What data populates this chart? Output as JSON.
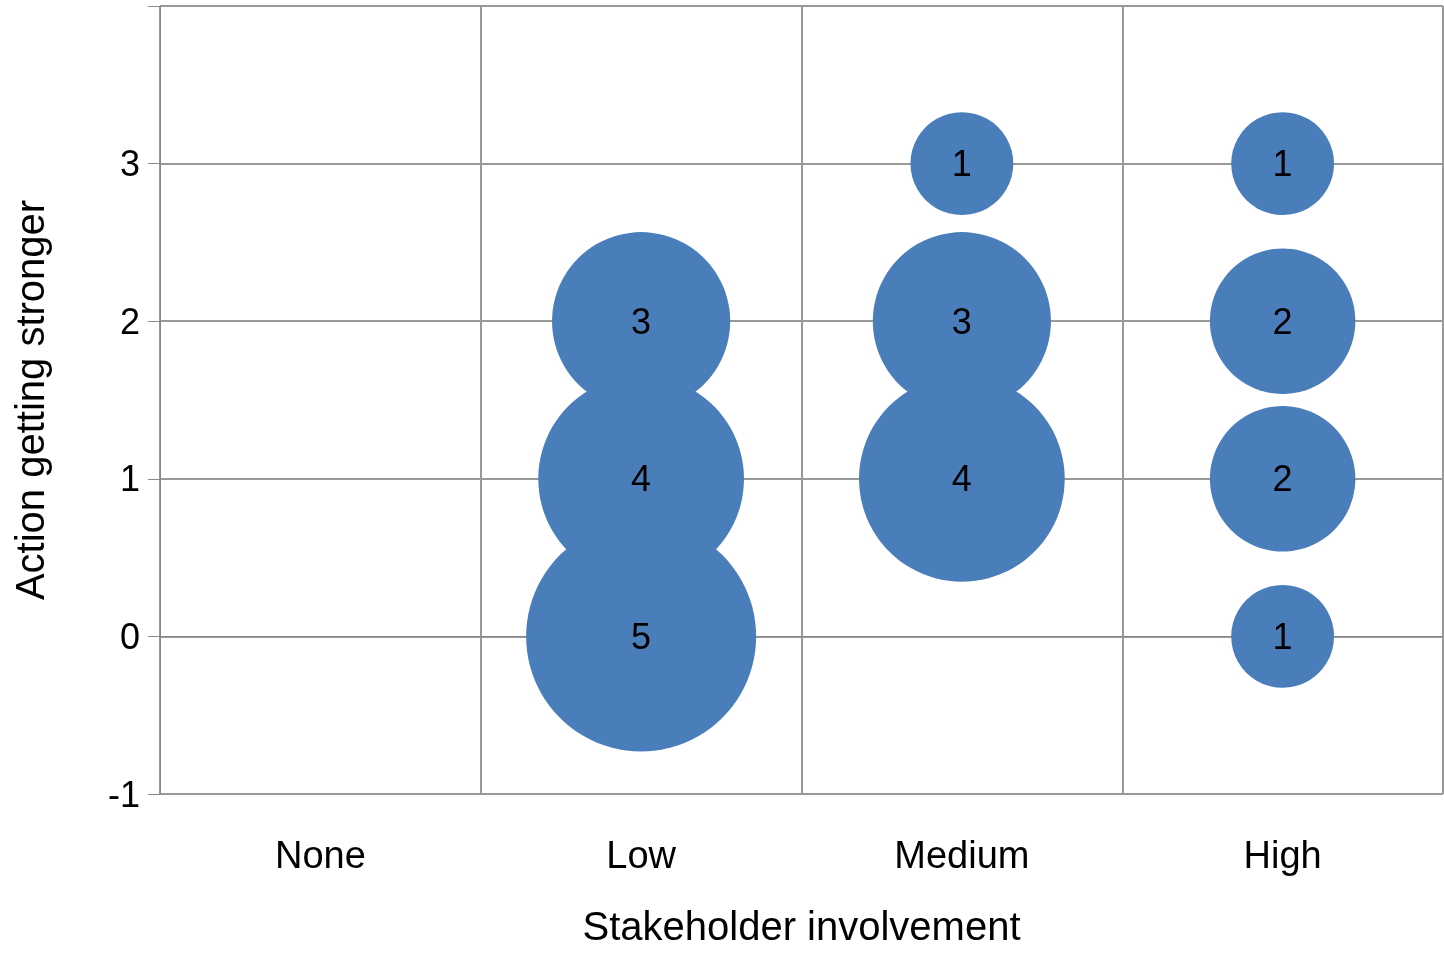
{
  "chart_data": {
    "type": "bubble",
    "xlabel": "Stakeholder involvement",
    "ylabel": "Action getting stronger",
    "categories": [
      "None",
      "Low",
      "Medium",
      "High"
    ],
    "series": [
      {
        "color": "#4a7ebb",
        "x": [
          "Low",
          "Low",
          "Low",
          "Medium",
          "Medium",
          "Medium",
          "High",
          "High",
          "High",
          "High"
        ],
        "values": [
          0,
          1,
          2,
          1,
          2,
          3,
          0,
          1,
          2,
          3
        ],
        "sizes": [
          5,
          4,
          3,
          4,
          3,
          1,
          1,
          2,
          2,
          1
        ],
        "value_labels": [
          "5",
          "4",
          "3",
          "4",
          "3",
          "1",
          "1",
          "2",
          "2",
          "1"
        ]
      }
    ],
    "ylim": [
      -1,
      4
    ],
    "yticks": [
      -1,
      0,
      1,
      2,
      3,
      {
        "value": 4,
        "label": null
      }
    ],
    "grid": true
  }
}
